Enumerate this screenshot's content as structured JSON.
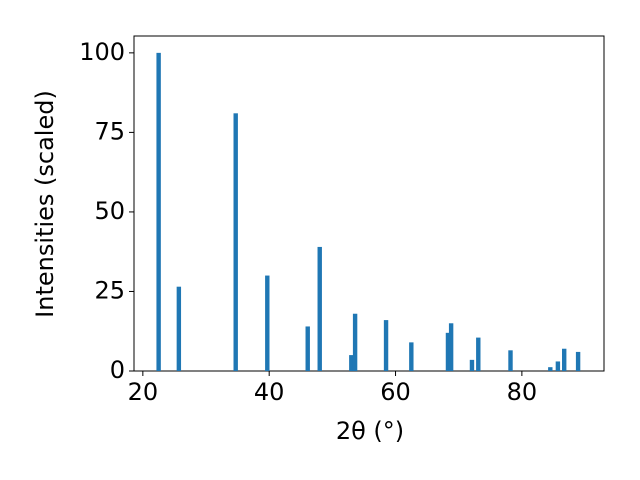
{
  "chart_data": {
    "type": "bar",
    "xlabel": "2θ (°)",
    "ylabel": "Intensities (scaled)",
    "x": [
      22.5,
      25.7,
      34.7,
      39.7,
      46.1,
      48.0,
      53.0,
      53.6,
      58.5,
      62.5,
      68.3,
      68.8,
      72.1,
      73.1,
      78.2,
      84.5,
      85.7,
      86.7,
      88.9
    ],
    "values": [
      100,
      26.5,
      81,
      30,
      14,
      39,
      5,
      18,
      16,
      9,
      12,
      15,
      3.5,
      10.5,
      6.5,
      1.2,
      3,
      7,
      6
    ],
    "color": "#1f77b4",
    "xlim": [
      18.6,
      93
    ],
    "xticks": [
      20,
      40,
      60,
      80
    ],
    "ylim": [
      0,
      105.3
    ],
    "yticks": [
      0,
      25,
      50,
      75,
      100
    ]
  }
}
